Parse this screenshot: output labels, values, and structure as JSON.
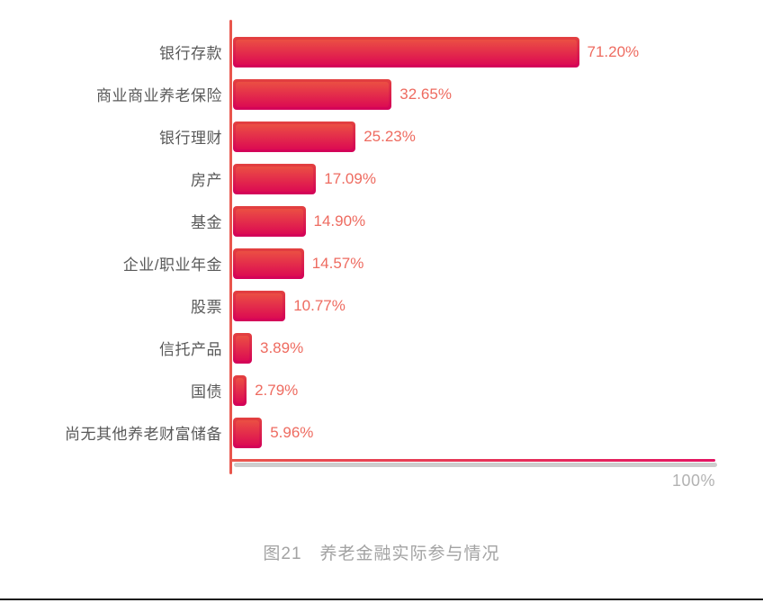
{
  "chart_data": {
    "type": "bar",
    "orientation": "horizontal",
    "title": "图21　养老金融实际参与情况",
    "categories": [
      "银行存款",
      "商业商业养老保险",
      "银行理财",
      "房产",
      "基金",
      "企业/职业年金",
      "股票",
      "信托产品",
      "国债",
      "尚无其他养老财富储备"
    ],
    "values": [
      71.2,
      32.65,
      25.23,
      17.09,
      14.9,
      14.57,
      10.77,
      3.89,
      2.79,
      5.96
    ],
    "value_labels": [
      "71.20%",
      "32.65%",
      "25.23%",
      "17.09%",
      "14.90%",
      "14.57%",
      "10.77%",
      "3.89%",
      "2.79%",
      "5.96%"
    ],
    "xlabel": "",
    "ylabel": "",
    "xlim": [
      0,
      100
    ],
    "axis_max_label": "100%",
    "grid": false,
    "legend": null,
    "data_labels": true
  },
  "colors": {
    "bar_outer_top": "#e3413f",
    "bar_outer_bottom": "#d30059",
    "bar_inner_top": "#eb4f43",
    "bar_inner_bottom": "#dc0b52",
    "value_label": "#ee6b60",
    "category_label": "#595959",
    "axis_line": "#e9564d",
    "axis_line_end": "#e31562",
    "axis_shadow": "#cdcdcd",
    "axis_max_label_color": "#b2b2b2",
    "title_color": "#a3a3a3",
    "bottom_border": "#1b1b1b"
  }
}
